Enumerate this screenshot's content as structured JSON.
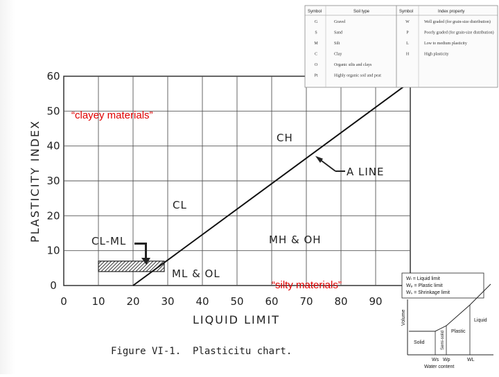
{
  "chart_data": {
    "type": "line",
    "xlabel": "LIQUID LIMIT",
    "ylabel": "PLASTICITY INDEX",
    "xlim": [
      0,
      100
    ],
    "ylim": [
      0,
      60
    ],
    "x_ticks": [
      "0",
      "10",
      "20",
      "30",
      "40",
      "50",
      "60",
      "70",
      "80",
      "90"
    ],
    "y_ticks": [
      "0",
      "10",
      "20",
      "30",
      "40",
      "50",
      "60"
    ],
    "grid": true,
    "series": [
      {
        "name": "A LINE",
        "x": [
          20,
          100
        ],
        "y": [
          0,
          58.4
        ]
      }
    ],
    "cl_ml_zone": {
      "x": [
        10,
        29
      ],
      "y": [
        4,
        7
      ]
    },
    "regions": [
      "CH",
      "CL",
      "CL-ML",
      "MH & OH",
      "ML & OL"
    ],
    "annotations": {
      "a_line": "A LINE",
      "cl_ml": "CL-ML",
      "clayey": "“clayey  materials”",
      "silty": "“silty materials”"
    },
    "caption": "Figure VI-1.  Plasticitu chart."
  },
  "legend_table": {
    "headers": [
      "Symbol",
      "Soil type",
      "Symbol",
      "Index property"
    ],
    "rows": [
      [
        "G",
        "Gravel",
        "W",
        "Well graded (for grain-size distribution)"
      ],
      [
        "S",
        "Sand",
        "P",
        "Poorly graded (for grain-size distribution)"
      ],
      [
        "M",
        "Silt",
        "L",
        "Low to medium plasticity"
      ],
      [
        "C",
        "Clay",
        "H",
        "High plasticity"
      ],
      [
        "O",
        "Organic silts and clays",
        "",
        ""
      ],
      [
        "Pt",
        "Highly organic soil and peat",
        "",
        ""
      ]
    ]
  },
  "phase_diagram": {
    "legend": [
      "Wₗ = Liquid limit",
      "Wₚ = Plastic limit",
      "Wₛ = Shrinkage limit"
    ],
    "y_label": "Volume",
    "x_label": "Water content",
    "states": [
      "Solid",
      "Semi-solid",
      "Plastic",
      "Liquid"
    ],
    "x_marks": [
      "Ws",
      "Wp",
      "WL"
    ]
  }
}
